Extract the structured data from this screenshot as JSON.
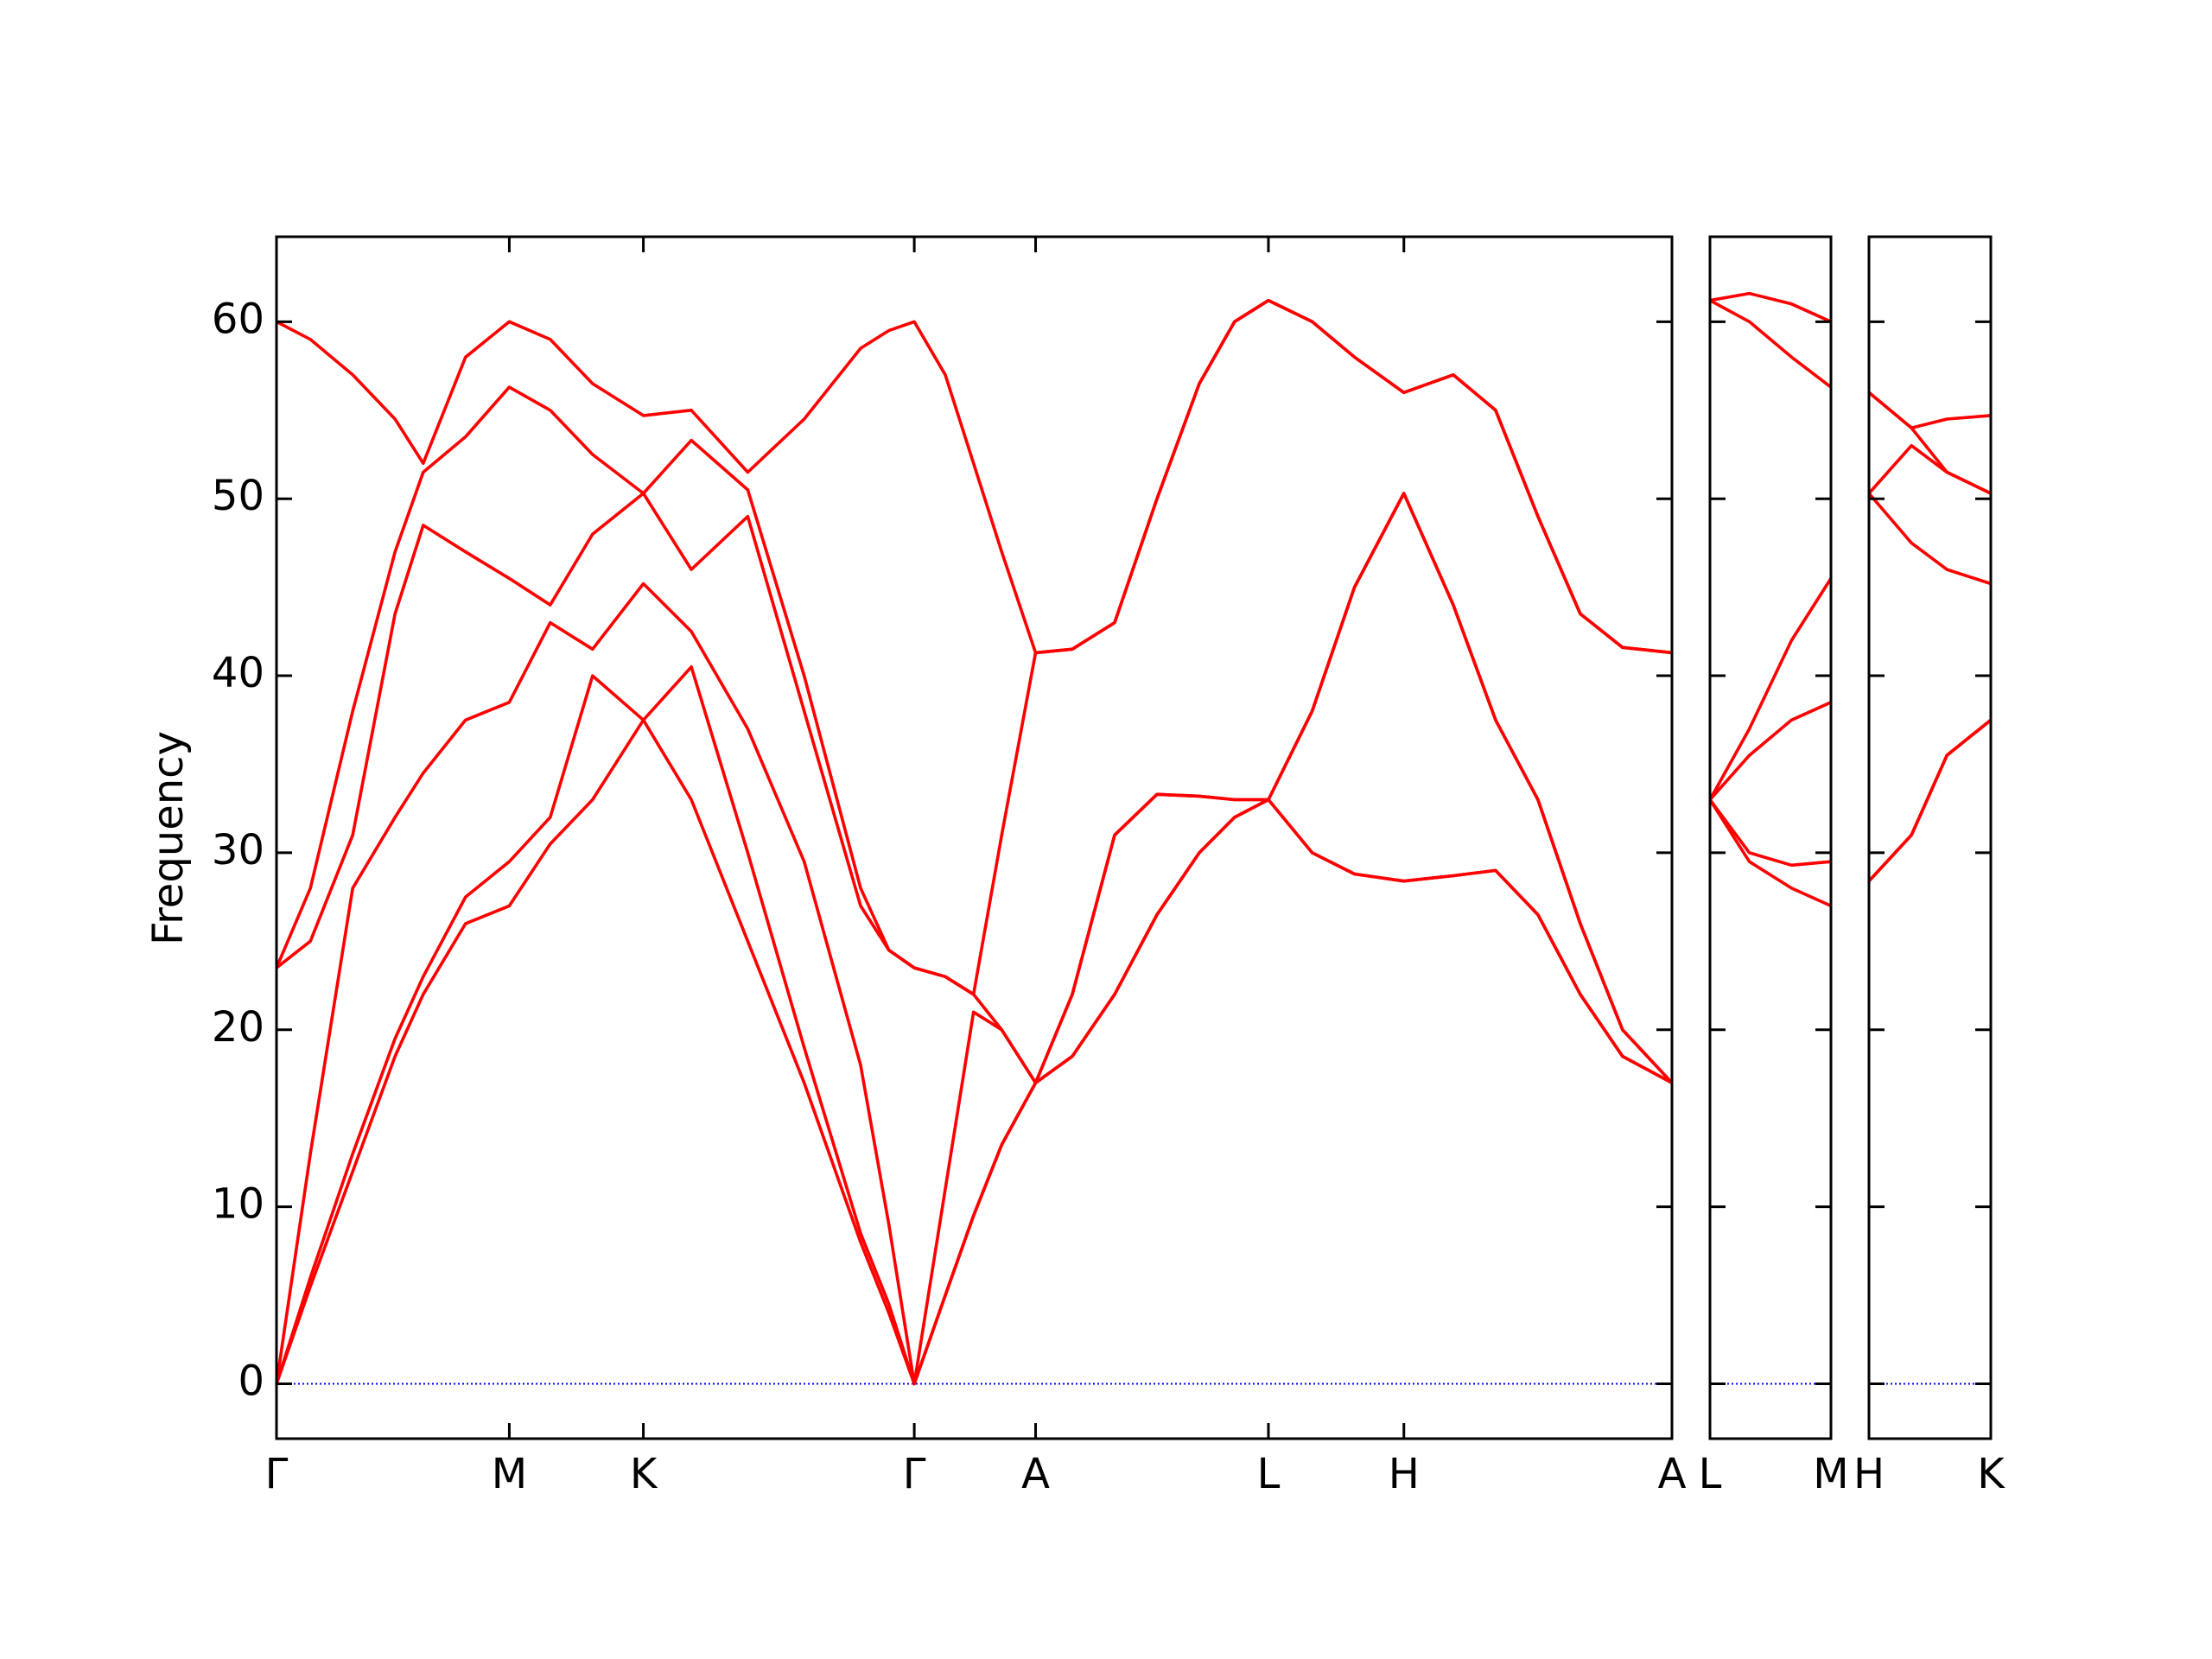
{
  "chart_data": [
    {
      "type": "line",
      "ylabel": "Frequency",
      "color": "#ff0000",
      "zero_line_color": "#0000ff",
      "x": [
        0,
        0.24,
        0.54,
        0.84,
        1.04,
        1.34,
        1.65,
        1.94,
        2.24,
        2.6,
        2.94,
        3.34,
        3.74,
        4.14,
        4.34,
        4.52,
        4.74,
        4.94,
        5.14,
        5.38,
        5.64,
        5.94,
        6.24,
        6.54,
        6.79,
        7.03,
        7.34,
        7.64,
        7.99,
        8.34,
        8.64,
        8.94,
        9.24,
        9.54,
        9.89
      ],
      "series": [
        {
          "values": [
            0,
            5.5,
            12,
            18.5,
            22,
            26,
            27,
            30.5,
            33,
            37.5,
            33,
            25,
            17,
            8,
            4,
            0,
            5,
            9.5,
            13.5,
            17,
            18.5,
            22,
            26.5,
            30,
            32,
            33,
            30,
            28.8,
            28.4,
            28.7,
            29,
            26.5,
            22,
            18.5,
            17
          ]
        },
        {
          "values": [
            0,
            6,
            13,
            19.5,
            23,
            27.5,
            29.5,
            32,
            40,
            37.5,
            40.5,
            30,
            19,
            8.5,
            4.5,
            0,
            5,
            9.5,
            13.5,
            17,
            18.5,
            22,
            26.5,
            30,
            32,
            33,
            30,
            28.8,
            28.4,
            28.7,
            29,
            26.5,
            22,
            18.5,
            17
          ]
        },
        {
          "values": [
            0,
            13,
            28,
            32,
            34.5,
            37.5,
            38.5,
            43,
            41.5,
            45.2,
            42.5,
            37,
            29.5,
            18,
            9,
            0,
            11,
            21,
            20,
            17,
            22,
            31,
            33.3,
            33.2,
            33,
            33,
            38,
            45,
            50.3,
            44,
            37.5,
            33,
            26,
            20,
            17
          ]
        },
        {
          "values": [
            23.5,
            25,
            31,
            43.5,
            48.5,
            47,
            45.5,
            44,
            48,
            50.3,
            46,
            49,
            38,
            27,
            24.5,
            23.5,
            23,
            22,
            20,
            17,
            22,
            31,
            33.3,
            33.2,
            33,
            33,
            38,
            45,
            50.3,
            44,
            37.5,
            33,
            26,
            20,
            17
          ]
        },
        {
          "values": [
            23.5,
            28,
            38,
            47,
            51.5,
            53.5,
            56.3,
            55,
            52.5,
            50.3,
            53.3,
            50.5,
            40,
            28,
            24.5,
            23.5,
            23,
            22,
            31,
            41.3,
            41.5,
            43,
            50,
            56.5,
            60,
            61.2,
            60,
            58,
            56,
            57,
            55,
            49,
            43.5,
            41.6,
            41.3
          ]
        },
        {
          "values": [
            60,
            59,
            57,
            54.5,
            52,
            58,
            60,
            59,
            56.5,
            54.7,
            55,
            51.5,
            54.5,
            58.5,
            59.5,
            60,
            57,
            52,
            47,
            41.3,
            41.5,
            43,
            50,
            56.5,
            60,
            61.2,
            60,
            58,
            56,
            57,
            55,
            49,
            43.5,
            41.6,
            41.3
          ]
        }
      ],
      "xlim": [
        0,
        9.89
      ],
      "ylim": [
        -3.1,
        64.8
      ],
      "yticks": [
        0,
        10,
        20,
        30,
        40,
        50,
        60
      ],
      "xticks": [
        {
          "value": 0,
          "label": "Γ"
        },
        {
          "value": 1.65,
          "label": "M"
        },
        {
          "value": 2.6,
          "label": "K"
        },
        {
          "value": 4.52,
          "label": "Γ"
        },
        {
          "value": 5.38,
          "label": "A"
        },
        {
          "value": 7.03,
          "label": "L"
        },
        {
          "value": 7.99,
          "label": "H"
        },
        {
          "value": 9.89,
          "label": "A"
        }
      ]
    },
    {
      "type": "line",
      "color": "#ff0000",
      "zero_line_color": "#0000ff",
      "x": [
        0,
        0.28,
        0.58,
        0.86
      ],
      "series": [
        {
          "values": [
            33,
            29.5,
            28,
            27
          ]
        },
        {
          "values": [
            33,
            30,
            29.3,
            29.5
          ]
        },
        {
          "values": [
            33,
            35.5,
            37.5,
            38.5
          ]
        },
        {
          "values": [
            33,
            37,
            42,
            45.5
          ]
        },
        {
          "values": [
            61.2,
            60,
            58,
            56.3
          ]
        },
        {
          "values": [
            61.2,
            61.6,
            61,
            60
          ]
        }
      ],
      "xlim": [
        0,
        0.86
      ],
      "ylim": [
        -3.1,
        64.8
      ],
      "yticks": [
        0,
        10,
        20,
        30,
        40,
        50,
        60
      ],
      "xticks": [
        {
          "value": 0,
          "label": "L"
        },
        {
          "value": 0.86,
          "label": "M"
        }
      ]
    },
    {
      "type": "line",
      "color": "#ff0000",
      "zero_line_color": "#0000ff",
      "x": [
        0,
        0.3,
        0.55,
        0.86
      ],
      "series": [
        {
          "values": [
            28.4,
            31,
            35.5,
            37.5
          ]
        },
        {
          "values": [
            28.4,
            31,
            35.5,
            37.5
          ]
        },
        {
          "values": [
            50.3,
            47.5,
            46,
            45.2
          ]
        },
        {
          "values": [
            50.3,
            53,
            51.5,
            50.3
          ]
        },
        {
          "values": [
            56,
            54,
            51.5,
            50.3
          ]
        },
        {
          "values": [
            56,
            54,
            54.5,
            54.7
          ]
        }
      ],
      "xlim": [
        0,
        0.86
      ],
      "ylim": [
        -3.1,
        64.8
      ],
      "yticks": [
        0,
        10,
        20,
        30,
        40,
        50,
        60
      ],
      "xticks": [
        {
          "value": 0,
          "label": "H"
        },
        {
          "value": 0.86,
          "label": "K"
        }
      ]
    }
  ]
}
